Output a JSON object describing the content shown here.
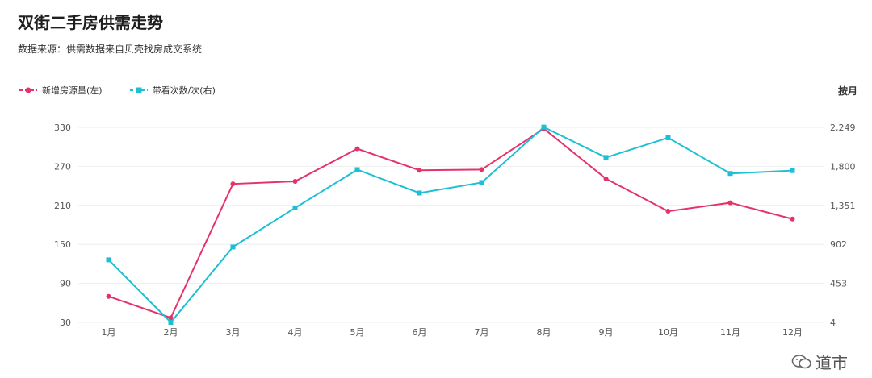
{
  "header": {
    "title": "双街二手房供需走势",
    "subtitle": "数据来源：供需数据来自贝壳找房成交系统",
    "unit_label": "按月"
  },
  "legend": {
    "series_a": "新增房源量(左)",
    "series_b": "带看次数/次(右)"
  },
  "watermark": {
    "text": "道市"
  },
  "colors": {
    "series_a": "#e5336a",
    "series_b": "#1cbfd4",
    "grid": "#eeeeee"
  },
  "chart_data": {
    "type": "line",
    "title": "双街二手房供需走势",
    "categories": [
      "1月",
      "2月",
      "3月",
      "4月",
      "5月",
      "6月",
      "7月",
      "8月",
      "9月",
      "10月",
      "11月",
      "12月"
    ],
    "series": [
      {
        "name": "新增房源量(左)",
        "axis": "left",
        "values": [
          70,
          37,
          243,
          247,
          297,
          264,
          265,
          328,
          251,
          201,
          214,
          189
        ]
      },
      {
        "name": "带看次数/次(右)",
        "axis": "right",
        "values": [
          724,
          4,
          872,
          1322,
          1762,
          1493,
          1614,
          2252,
          1902,
          2129,
          1718,
          1751
        ]
      }
    ],
    "y_left": {
      "min": 30,
      "max": 330,
      "ticks": [
        "30",
        "90",
        "150",
        "210",
        "270",
        "330"
      ]
    },
    "y_right": {
      "min": 4,
      "max": 2249,
      "ticks": [
        "4",
        "453",
        "902",
        "1,351",
        "1,800",
        "2,249"
      ]
    },
    "grid": true,
    "legend_position": "top-left"
  }
}
